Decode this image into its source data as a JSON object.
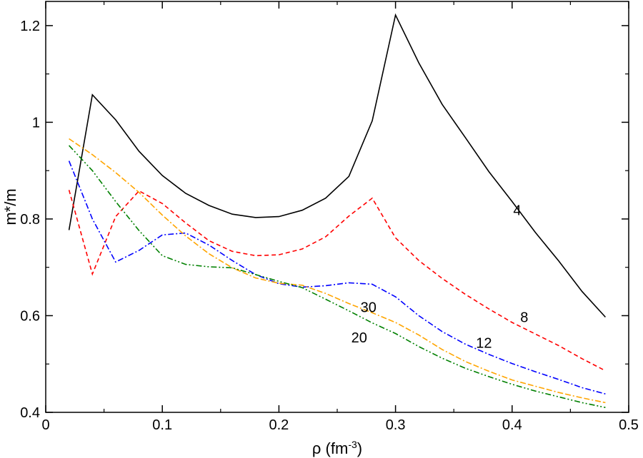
{
  "chart_data": {
    "type": "line",
    "xlabel_main": "ρ (fm",
    "xlabel_sup": "-3",
    "xlabel_tail": ")",
    "ylabel": "m*/m",
    "xlim": [
      0,
      0.5
    ],
    "ylim": [
      0.4,
      1.25
    ],
    "xticks": [
      0,
      0.1,
      0.2,
      0.3,
      0.4,
      0.5
    ],
    "xtick_labels": [
      "0",
      "0.1",
      "0.2",
      "0.3",
      "0.4",
      "0.5"
    ],
    "yticks": [
      0.4,
      0.6,
      0.8,
      1.0,
      1.2
    ],
    "ytick_labels": [
      "0.4",
      "0.6",
      "0.8",
      "1",
      "1.2"
    ],
    "grid": false,
    "series": [
      {
        "name": "4",
        "color": "#000000",
        "dash": "solid",
        "label_at": [
          0.401,
          0.818
        ],
        "points": [
          [
            0.02,
            0.777
          ],
          [
            0.04,
            1.057
          ],
          [
            0.06,
            1.005
          ],
          [
            0.08,
            0.94
          ],
          [
            0.1,
            0.89
          ],
          [
            0.12,
            0.853
          ],
          [
            0.14,
            0.828
          ],
          [
            0.16,
            0.81
          ],
          [
            0.18,
            0.803
          ],
          [
            0.2,
            0.805
          ],
          [
            0.22,
            0.818
          ],
          [
            0.24,
            0.843
          ],
          [
            0.26,
            0.888
          ],
          [
            0.28,
            1.003
          ],
          [
            0.3,
            1.222
          ],
          [
            0.32,
            1.123
          ],
          [
            0.34,
            1.037
          ],
          [
            0.36,
            0.968
          ],
          [
            0.38,
            0.898
          ],
          [
            0.4,
            0.836
          ],
          [
            0.42,
            0.772
          ],
          [
            0.44,
            0.713
          ],
          [
            0.46,
            0.65
          ],
          [
            0.48,
            0.597
          ]
        ]
      },
      {
        "name": "8",
        "color": "#ff0000",
        "dash": "dashed",
        "label_at": [
          0.407,
          0.597
        ],
        "points": [
          [
            0.02,
            0.86
          ],
          [
            0.04,
            0.686
          ],
          [
            0.06,
            0.805
          ],
          [
            0.08,
            0.858
          ],
          [
            0.1,
            0.832
          ],
          [
            0.12,
            0.792
          ],
          [
            0.14,
            0.755
          ],
          [
            0.16,
            0.733
          ],
          [
            0.18,
            0.724
          ],
          [
            0.2,
            0.726
          ],
          [
            0.22,
            0.738
          ],
          [
            0.24,
            0.763
          ],
          [
            0.26,
            0.806
          ],
          [
            0.28,
            0.843
          ],
          [
            0.3,
            0.761
          ],
          [
            0.32,
            0.714
          ],
          [
            0.34,
            0.677
          ],
          [
            0.36,
            0.644
          ],
          [
            0.38,
            0.614
          ],
          [
            0.4,
            0.586
          ],
          [
            0.42,
            0.562
          ],
          [
            0.44,
            0.538
          ],
          [
            0.46,
            0.511
          ],
          [
            0.48,
            0.486
          ]
        ]
      },
      {
        "name": "12",
        "color": "#0000ff",
        "dash": "dashdot",
        "label_at": [
          0.369,
          0.544
        ],
        "points": [
          [
            0.02,
            0.92
          ],
          [
            0.04,
            0.8
          ],
          [
            0.06,
            0.711
          ],
          [
            0.08,
            0.735
          ],
          [
            0.1,
            0.767
          ],
          [
            0.12,
            0.771
          ],
          [
            0.14,
            0.746
          ],
          [
            0.16,
            0.714
          ],
          [
            0.18,
            0.685
          ],
          [
            0.2,
            0.666
          ],
          [
            0.22,
            0.659
          ],
          [
            0.24,
            0.662
          ],
          [
            0.26,
            0.668
          ],
          [
            0.28,
            0.665
          ],
          [
            0.3,
            0.639
          ],
          [
            0.32,
            0.6
          ],
          [
            0.34,
            0.567
          ],
          [
            0.36,
            0.541
          ],
          [
            0.38,
            0.52
          ],
          [
            0.4,
            0.501
          ],
          [
            0.42,
            0.484
          ],
          [
            0.44,
            0.468
          ],
          [
            0.46,
            0.451
          ],
          [
            0.48,
            0.438
          ]
        ]
      },
      {
        "name": "30",
        "color": "#ffa500",
        "dash": "dashdashdot",
        "label_at": [
          0.27,
          0.618
        ],
        "points": [
          [
            0.02,
            0.966
          ],
          [
            0.04,
            0.933
          ],
          [
            0.06,
            0.896
          ],
          [
            0.08,
            0.855
          ],
          [
            0.1,
            0.808
          ],
          [
            0.12,
            0.765
          ],
          [
            0.14,
            0.728
          ],
          [
            0.16,
            0.699
          ],
          [
            0.18,
            0.678
          ],
          [
            0.2,
            0.667
          ],
          [
            0.22,
            0.663
          ],
          [
            0.24,
            0.646
          ],
          [
            0.26,
            0.625
          ],
          [
            0.28,
            0.606
          ],
          [
            0.3,
            0.586
          ],
          [
            0.32,
            0.56
          ],
          [
            0.34,
            0.53
          ],
          [
            0.36,
            0.505
          ],
          [
            0.38,
            0.485
          ],
          [
            0.4,
            0.467
          ],
          [
            0.42,
            0.454
          ],
          [
            0.44,
            0.441
          ],
          [
            0.46,
            0.43
          ],
          [
            0.48,
            0.42
          ]
        ]
      },
      {
        "name": "20",
        "color": "#008000",
        "dash": "dashdotdot",
        "label_at": [
          0.262,
          0.555
        ],
        "points": [
          [
            0.02,
            0.952
          ],
          [
            0.04,
            0.9
          ],
          [
            0.06,
            0.836
          ],
          [
            0.08,
            0.776
          ],
          [
            0.1,
            0.724
          ],
          [
            0.12,
            0.706
          ],
          [
            0.14,
            0.701
          ],
          [
            0.16,
            0.699
          ],
          [
            0.18,
            0.685
          ],
          [
            0.2,
            0.671
          ],
          [
            0.22,
            0.658
          ],
          [
            0.24,
            0.634
          ],
          [
            0.26,
            0.61
          ],
          [
            0.28,
            0.585
          ],
          [
            0.3,
            0.563
          ],
          [
            0.32,
            0.536
          ],
          [
            0.34,
            0.512
          ],
          [
            0.36,
            0.491
          ],
          [
            0.38,
            0.474
          ],
          [
            0.4,
            0.458
          ],
          [
            0.42,
            0.444
          ],
          [
            0.44,
            0.432
          ],
          [
            0.46,
            0.42
          ],
          [
            0.48,
            0.41
          ]
        ]
      }
    ]
  }
}
